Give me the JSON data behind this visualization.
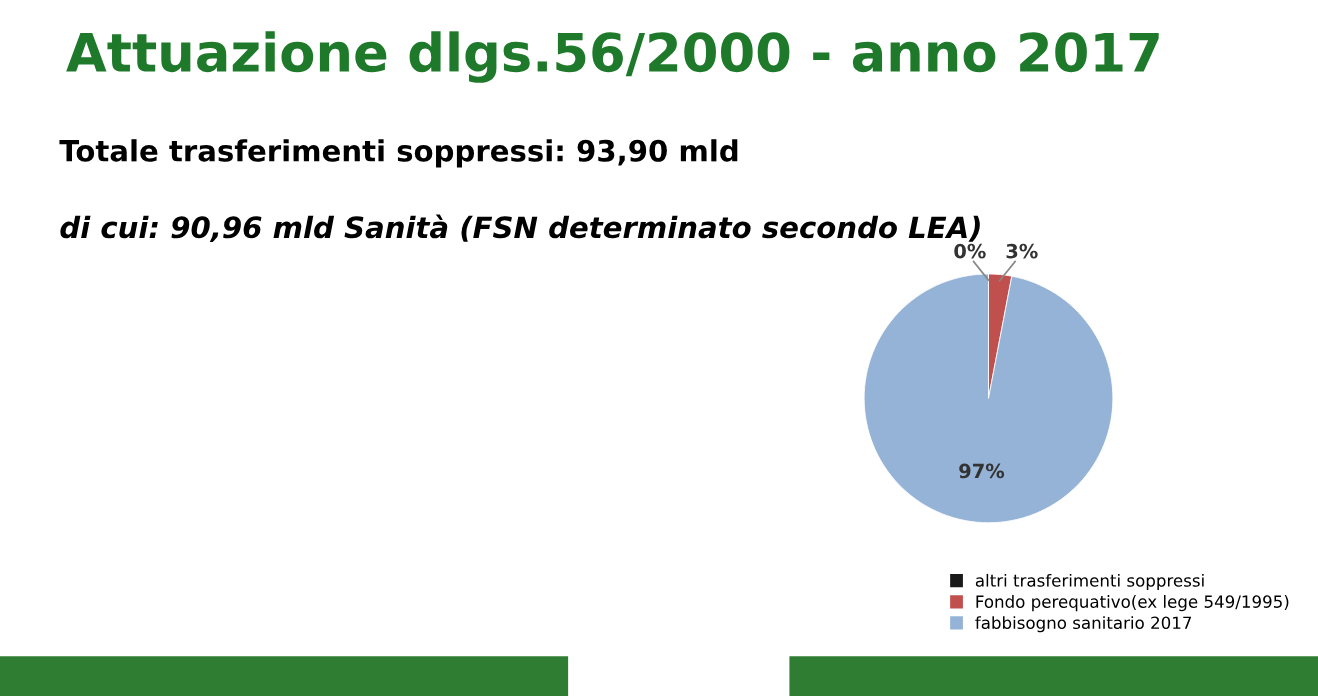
{
  "chart_data": {
    "type": "pie",
    "title": "Attuazione dlgs.56/2000 - anno 2017",
    "subtitle": "Totale trasferimenti soppressi: 93,90 mld",
    "annotations": [
      "di cui: 90,96 mld Sanità (FSN determinato secondo LEA)"
    ],
    "categories": [
      "altri trasferimenti soppressi",
      "Fondo perequativo(ex lege 549/1995)",
      "fabbisogno sanitario 2017"
    ],
    "values": [
      0,
      3,
      97
    ],
    "value_labels": [
      "0%",
      "3%",
      "97%"
    ],
    "colors": [
      "#1a1a1a",
      "#c0504d",
      "#95b3d7"
    ],
    "legend": "bottom right"
  }
}
